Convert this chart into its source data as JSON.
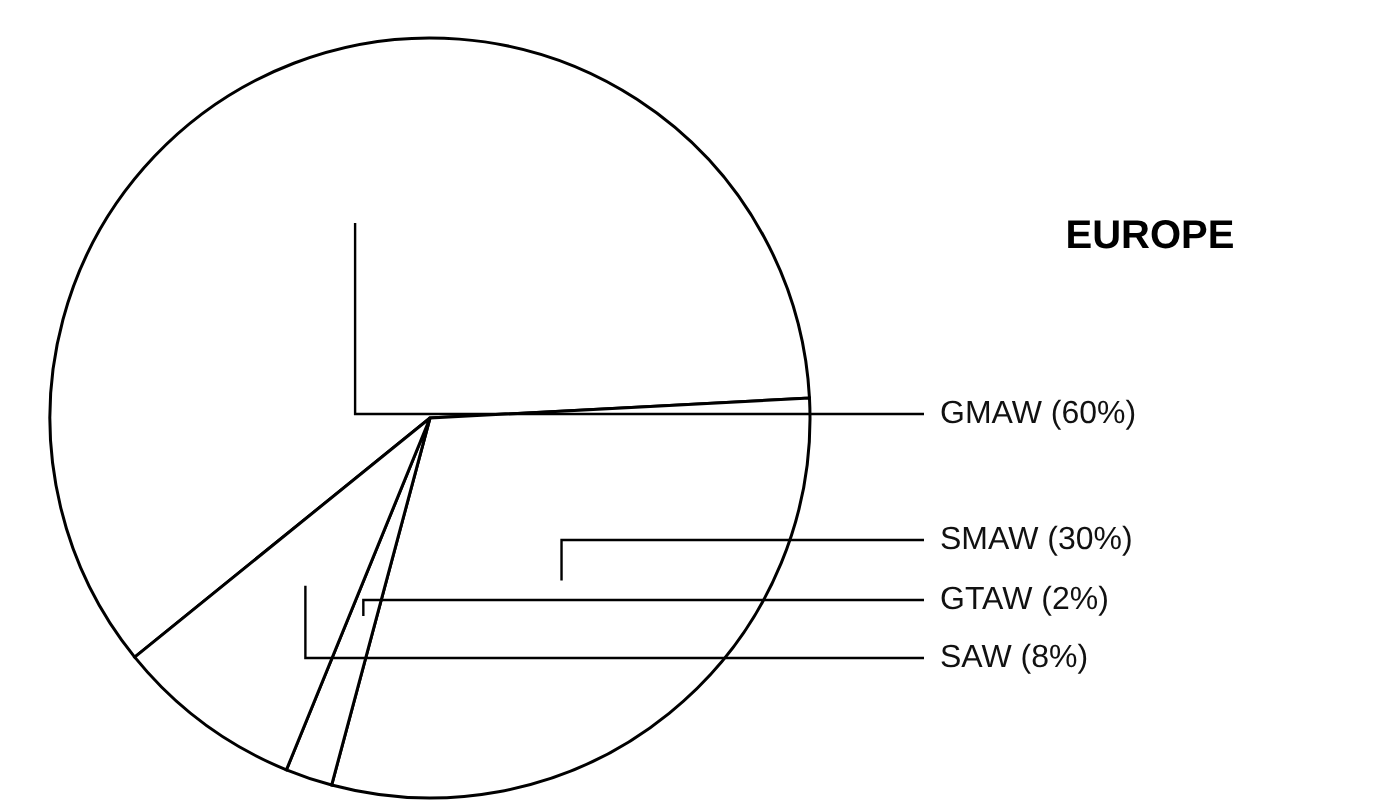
{
  "chart_data": {
    "type": "pie",
    "title": "EUROPE",
    "categories": [
      "GMAW (60%)",
      "SMAW (30%)",
      "GTAW (2%)",
      "SAW (8%)"
    ],
    "values": [
      60,
      30,
      2,
      8
    ],
    "colors": [
      "#ffffff",
      "#ffffff",
      "#ffffff",
      "#ffffff"
    ]
  }
}
